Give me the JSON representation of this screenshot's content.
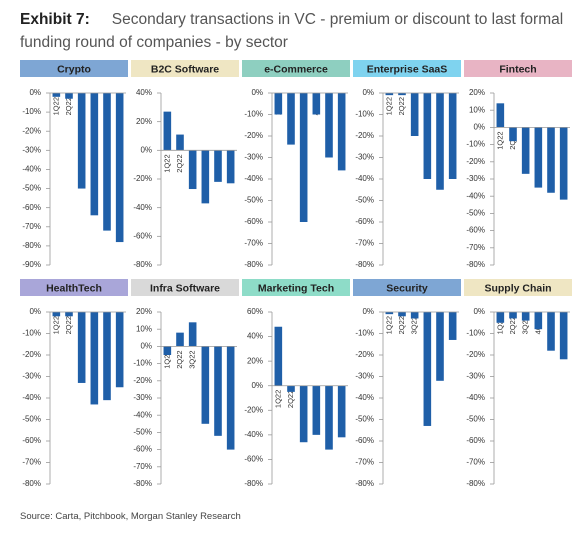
{
  "exhibit": "Exhibit 7:",
  "title": "Secondary transactions in VC - premium or discount to last formal funding round of companies - by sector",
  "source": "Source: Carta, Pitchbook, Morgan Stanley Research",
  "chart_data": [
    {
      "type": "bar",
      "title": "Crypto",
      "header_color": "#7ea6d4",
      "color": "#1f5fa8",
      "categories": [
        "1Q22",
        "2Q22",
        "3Q22",
        "4Q22",
        "1Q23",
        "2Q23"
      ],
      "values": [
        -2,
        -3,
        -50,
        -64,
        -72,
        -78
      ],
      "ylim": [
        -90,
        0
      ],
      "yticks": [
        {
          "value": 0,
          "label": "0%"
        },
        {
          "value": -10,
          "label": "-10%"
        },
        {
          "value": -20,
          "label": "-20%"
        },
        {
          "value": -30,
          "label": "-30%"
        },
        {
          "value": -40,
          "label": "-40%"
        },
        {
          "value": -50,
          "label": "-50%"
        },
        {
          "value": -60,
          "label": "-60%"
        },
        {
          "value": -70,
          "label": "-70%"
        },
        {
          "value": -80,
          "label": "-80%"
        },
        {
          "value": -90,
          "label": "-90%"
        }
      ]
    },
    {
      "type": "bar",
      "title": "B2C Software",
      "header_color": "#efe6c3",
      "color": "#1f5fa8",
      "categories": [
        "1Q22",
        "2Q22",
        "3Q22",
        "4Q22",
        "1Q23",
        "2Q23"
      ],
      "values": [
        27,
        11,
        -27,
        -37,
        -22,
        -23
      ],
      "ylim": [
        -80,
        40
      ],
      "yticks": [
        {
          "value": 40,
          "label": "40%"
        },
        {
          "value": 20,
          "label": "20%"
        },
        {
          "value": 0,
          "label": "0%"
        },
        {
          "value": -20,
          "label": "-20%"
        },
        {
          "value": -40,
          "label": "-40%"
        },
        {
          "value": -60,
          "label": "-60%"
        },
        {
          "value": -80,
          "label": "-80%"
        }
      ]
    },
    {
      "type": "bar",
      "title": "e-Commerce",
      "header_color": "#8ecfc0",
      "color": "#1f5fa8",
      "categories": [
        "1Q22",
        "2Q22",
        "3Q22",
        "4Q22",
        "1Q23",
        "2Q23"
      ],
      "values": [
        -10,
        -24,
        -60,
        -10,
        -30,
        -36
      ],
      "ylim": [
        -80,
        0
      ],
      "yticks": [
        {
          "value": 0,
          "label": "0%"
        },
        {
          "value": -10,
          "label": "-10%"
        },
        {
          "value": -20,
          "label": "-20%"
        },
        {
          "value": -30,
          "label": "-30%"
        },
        {
          "value": -40,
          "label": "-40%"
        },
        {
          "value": -50,
          "label": "-50%"
        },
        {
          "value": -60,
          "label": "-60%"
        },
        {
          "value": -70,
          "label": "-70%"
        },
        {
          "value": -80,
          "label": "-80%"
        }
      ]
    },
    {
      "type": "bar",
      "title": "Enterprise SaaS",
      "header_color": "#7fd3ef",
      "color": "#1f5fa8",
      "categories": [
        "1Q22",
        "2Q22",
        "3Q22",
        "4Q22",
        "1Q23",
        "2Q23"
      ],
      "values": [
        -1,
        -1,
        -20,
        -40,
        -45,
        -40
      ],
      "ylim": [
        -80,
        0
      ],
      "yticks": [
        {
          "value": 0,
          "label": "0%"
        },
        {
          "value": -10,
          "label": "-10%"
        },
        {
          "value": -20,
          "label": "-20%"
        },
        {
          "value": -30,
          "label": "-30%"
        },
        {
          "value": -40,
          "label": "-40%"
        },
        {
          "value": -50,
          "label": "-50%"
        },
        {
          "value": -60,
          "label": "-60%"
        },
        {
          "value": -70,
          "label": "-70%"
        },
        {
          "value": -80,
          "label": "-80%"
        }
      ]
    },
    {
      "type": "bar",
      "title": "Fintech",
      "header_color": "#e8b4c4",
      "color": "#1f5fa8",
      "categories": [
        "1Q22",
        "2Q22",
        "3Q22",
        "4Q22",
        "1Q23",
        "2Q23"
      ],
      "values": [
        14,
        -8,
        -27,
        -35,
        -38,
        -42
      ],
      "ylim": [
        -80,
        20
      ],
      "yticks": [
        {
          "value": 20,
          "label": "20%"
        },
        {
          "value": 10,
          "label": "10%"
        },
        {
          "value": 0,
          "label": "0%"
        },
        {
          "value": -10,
          "label": "-10%"
        },
        {
          "value": -20,
          "label": "-20%"
        },
        {
          "value": -30,
          "label": "-30%"
        },
        {
          "value": -40,
          "label": "-40%"
        },
        {
          "value": -50,
          "label": "-50%"
        },
        {
          "value": -60,
          "label": "-60%"
        },
        {
          "value": -70,
          "label": "-70%"
        },
        {
          "value": -80,
          "label": "-80%"
        }
      ]
    },
    {
      "type": "bar",
      "title": "HealthTech",
      "header_color": "#a9a6d9",
      "color": "#1f5fa8",
      "categories": [
        "1Q22",
        "2Q22",
        "3Q22",
        "4Q22",
        "1Q23",
        "2Q23"
      ],
      "values": [
        -2,
        -2,
        -33,
        -43,
        -41,
        -35
      ],
      "ylim": [
        -80,
        0
      ],
      "yticks": [
        {
          "value": 0,
          "label": "0%"
        },
        {
          "value": -10,
          "label": "-10%"
        },
        {
          "value": -20,
          "label": "-20%"
        },
        {
          "value": -30,
          "label": "-30%"
        },
        {
          "value": -40,
          "label": "-40%"
        },
        {
          "value": -50,
          "label": "-50%"
        },
        {
          "value": -60,
          "label": "-60%"
        },
        {
          "value": -70,
          "label": "-70%"
        },
        {
          "value": -80,
          "label": "-80%"
        }
      ]
    },
    {
      "type": "bar",
      "title": "Infra Software",
      "header_color": "#d9d9d9",
      "color": "#1f5fa8",
      "categories": [
        "1Q22",
        "2Q22",
        "3Q22",
        "4Q22",
        "1Q23",
        "2Q23"
      ],
      "values": [
        -5,
        8,
        14,
        -45,
        -52,
        -60
      ],
      "ylim": [
        -80,
        20
      ],
      "yticks": [
        {
          "value": 20,
          "label": "20%"
        },
        {
          "value": 10,
          "label": "10%"
        },
        {
          "value": 0,
          "label": "0%"
        },
        {
          "value": -10,
          "label": "-10%"
        },
        {
          "value": -20,
          "label": "-20%"
        },
        {
          "value": -30,
          "label": "-30%"
        },
        {
          "value": -40,
          "label": "-40%"
        },
        {
          "value": -50,
          "label": "-50%"
        },
        {
          "value": -60,
          "label": "-60%"
        },
        {
          "value": -70,
          "label": "-70%"
        },
        {
          "value": -80,
          "label": "-80%"
        }
      ]
    },
    {
      "type": "bar",
      "title": "Marketing Tech",
      "header_color": "#8edcc8",
      "color": "#1f5fa8",
      "categories": [
        "1Q22",
        "2Q22",
        "3Q22",
        "4Q22",
        "1Q23",
        "2Q23"
      ],
      "values": [
        48,
        -5,
        -46,
        -40,
        -52,
        -42
      ],
      "ylim": [
        -80,
        60
      ],
      "yticks": [
        {
          "value": 60,
          "label": "60%"
        },
        {
          "value": 40,
          "label": "40%"
        },
        {
          "value": 20,
          "label": "20%"
        },
        {
          "value": 0,
          "label": "0%"
        },
        {
          "value": -20,
          "label": "-20%"
        },
        {
          "value": -40,
          "label": "-40%"
        },
        {
          "value": -60,
          "label": "-60%"
        },
        {
          "value": -80,
          "label": "-80%"
        }
      ]
    },
    {
      "type": "bar",
      "title": "Security",
      "header_color": "#7ea6d4",
      "color": "#1f5fa8",
      "categories": [
        "1Q22",
        "2Q22",
        "3Q22",
        "4Q22",
        "1Q23",
        "2Q23"
      ],
      "values": [
        -1,
        -2,
        -3,
        -53,
        -32,
        -13
      ],
      "ylim": [
        -80,
        0
      ],
      "yticks": [
        {
          "value": 0,
          "label": "0%"
        },
        {
          "value": -10,
          "label": "-10%"
        },
        {
          "value": -20,
          "label": "-20%"
        },
        {
          "value": -30,
          "label": "-30%"
        },
        {
          "value": -40,
          "label": "-40%"
        },
        {
          "value": -50,
          "label": "-50%"
        },
        {
          "value": -60,
          "label": "-60%"
        },
        {
          "value": -70,
          "label": "-70%"
        },
        {
          "value": -80,
          "label": "-80%"
        }
      ]
    },
    {
      "type": "bar",
      "title": "Supply Chain",
      "header_color": "#efe6c3",
      "color": "#1f5fa8",
      "categories": [
        "1Q22",
        "2Q22",
        "3Q22",
        "4Q22",
        "1Q23",
        "2Q23"
      ],
      "values": [
        -5,
        -3,
        -4,
        -8,
        -18,
        -22
      ],
      "ylim": [
        -80,
        0
      ],
      "yticks": [
        {
          "value": 0,
          "label": "0%"
        },
        {
          "value": -10,
          "label": "-10%"
        },
        {
          "value": -20,
          "label": "-20%"
        },
        {
          "value": -30,
          "label": "-30%"
        },
        {
          "value": -40,
          "label": "-40%"
        },
        {
          "value": -50,
          "label": "-50%"
        },
        {
          "value": -60,
          "label": "-60%"
        },
        {
          "value": -70,
          "label": "-70%"
        },
        {
          "value": -80,
          "label": "-80%"
        }
      ]
    }
  ]
}
